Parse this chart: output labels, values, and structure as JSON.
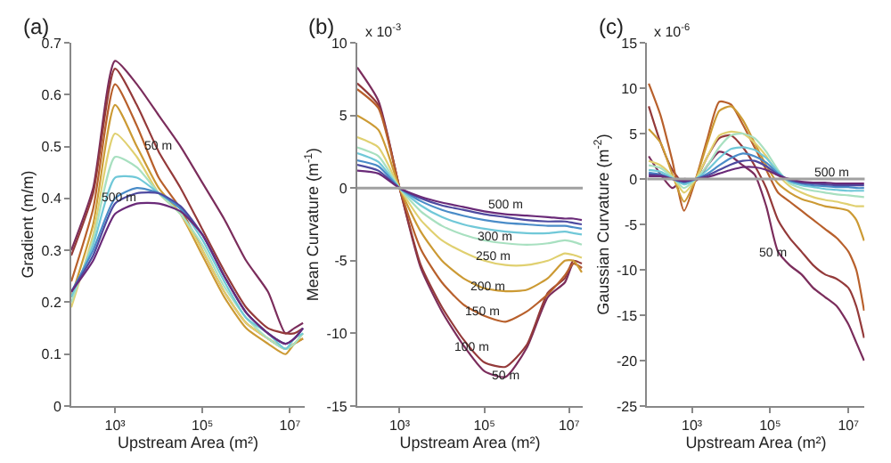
{
  "chart_data": [
    {
      "type": "line",
      "title": "(a)",
      "xlabel": "Upstream Area (m²)",
      "ylabel": "Gradient (m/m)",
      "log": "x",
      "x": [
        100,
        316,
        1000,
        3162,
        10000,
        31623,
        100000,
        316228,
        1000000,
        3162278,
        7943282,
        12589254,
        19952623
      ],
      "xlim": [
        100,
        22000000
      ],
      "xticks": [
        {
          "value": 1000,
          "label": "10³"
        },
        {
          "value": 100000,
          "label": "10⁵"
        },
        {
          "value": 10000000,
          "label": "10⁷"
        }
      ],
      "ylim": [
        0,
        0.7
      ],
      "yticks": [
        0,
        0.1,
        0.2,
        0.3,
        0.4,
        0.5,
        0.6,
        0.7
      ],
      "annotations": [
        {
          "text": "50 m",
          "x": 10000,
          "y": 0.5
        },
        {
          "text": "500 m",
          "x": 1259,
          "y": 0.4
        }
      ],
      "series": [
        {
          "color": "#7b2d5c",
          "values": [
            0.3,
            0.42,
            0.665,
            0.62,
            0.56,
            0.5,
            0.43,
            0.36,
            0.28,
            0.22,
            0.14,
            0.15,
            0.16
          ]
        },
        {
          "color": "#943a3a",
          "values": [
            0.29,
            0.41,
            0.65,
            0.58,
            0.49,
            0.42,
            0.34,
            0.26,
            0.19,
            0.15,
            0.14,
            0.14,
            0.15
          ]
        },
        {
          "color": "#b8602c",
          "values": [
            0.24,
            0.38,
            0.62,
            0.54,
            0.44,
            0.38,
            0.3,
            0.22,
            0.16,
            0.13,
            0.11,
            0.12,
            0.13
          ]
        },
        {
          "color": "#cc9a34",
          "values": [
            0.21,
            0.35,
            0.58,
            0.5,
            0.42,
            0.37,
            0.29,
            0.21,
            0.15,
            0.12,
            0.1,
            0.12,
            0.13
          ]
        },
        {
          "color": "#e0d070",
          "values": [
            0.19,
            0.33,
            0.525,
            0.48,
            0.41,
            0.37,
            0.3,
            0.22,
            0.16,
            0.13,
            0.11,
            0.12,
            0.14
          ]
        },
        {
          "color": "#a8e0c0",
          "values": [
            0.2,
            0.32,
            0.48,
            0.46,
            0.41,
            0.37,
            0.31,
            0.23,
            0.17,
            0.13,
            0.11,
            0.12,
            0.14
          ]
        },
        {
          "color": "#70c8d8",
          "values": [
            0.21,
            0.31,
            0.44,
            0.44,
            0.41,
            0.38,
            0.32,
            0.24,
            0.17,
            0.14,
            0.11,
            0.13,
            0.14
          ]
        },
        {
          "color": "#4a8cc8",
          "values": [
            0.22,
            0.3,
            0.4,
            0.42,
            0.41,
            0.38,
            0.33,
            0.25,
            0.18,
            0.14,
            0.12,
            0.13,
            0.15
          ]
        },
        {
          "color": "#4e4aa0",
          "values": [
            0.22,
            0.29,
            0.39,
            0.41,
            0.41,
            0.385,
            0.33,
            0.25,
            0.18,
            0.14,
            0.12,
            0.13,
            0.15
          ]
        },
        {
          "color": "#6a2a78",
          "values": [
            0.22,
            0.28,
            0.37,
            0.39,
            0.39,
            0.375,
            0.33,
            0.25,
            0.18,
            0.14,
            0.12,
            0.13,
            0.15
          ]
        }
      ]
    },
    {
      "type": "line",
      "title": "(b)",
      "xlabel": "Upstream Area (m²)",
      "ylabel": "Mean Curvature (m$^{-1}$)",
      "log": "x",
      "x": [
        100,
        316,
        1000,
        3162,
        10000,
        31623,
        100000,
        316228,
        1000000,
        3162278,
        7943282,
        12589254,
        19952623
      ],
      "xlim": [
        100,
        21000000
      ],
      "xticks": [
        {
          "value": 1000,
          "label": "10³"
        },
        {
          "value": 100000,
          "label": "10⁵"
        },
        {
          "value": 10000000,
          "label": "10⁷"
        }
      ],
      "ylim": [
        -15,
        10
      ],
      "yticks": [
        -15,
        -10,
        -5,
        0,
        5,
        10
      ],
      "ref_lines": [
        {
          "axis": "y",
          "value": 0,
          "color": "#a0a0a0"
        }
      ],
      "annotations": [
        "x 10$^{-3}$",
        {
          "text": "500 m",
          "x": 316228,
          "y": -1.2
        },
        {
          "text": "300 m",
          "x": 173780,
          "y": -3.4
        },
        {
          "text": "250 m",
          "x": 158489,
          "y": -4.8
        },
        {
          "text": "200 m",
          "x": 125893,
          "y": -6.8
        },
        {
          "text": "150 m",
          "x": 93325,
          "y": -8.6
        },
        {
          "text": "100 m",
          "x": 50119,
          "y": -11.0
        },
        {
          "text": "50 m",
          "x": 316228,
          "y": -13.0
        }
      ],
      "series": [
        {
          "color": "#7b2d5c",
          "values": [
            8.3,
            6,
            0,
            -5.5,
            -8.5,
            -10.8,
            -12.6,
            -13.0,
            -11,
            -7.5,
            -6.5,
            -5.2,
            -5.5
          ]
        },
        {
          "color": "#943a3a",
          "values": [
            7.2,
            5.7,
            0,
            -5.3,
            -8.2,
            -10.4,
            -12.0,
            -12.3,
            -10.8,
            -7.2,
            -6.2,
            -5,
            -5.2
          ]
        },
        {
          "color": "#b8602c",
          "values": [
            6.8,
            5.5,
            0,
            -4.2,
            -6.5,
            -8,
            -8.8,
            -9.2,
            -8.5,
            -7.3,
            -6,
            -5.2,
            -5.5
          ]
        },
        {
          "color": "#cc9a34",
          "values": [
            5,
            4,
            0,
            -3,
            -5,
            -6.2,
            -6.9,
            -7.1,
            -7,
            -6.2,
            -5,
            -5,
            -5.8
          ]
        },
        {
          "color": "#e0d070",
          "values": [
            3.5,
            2.8,
            0,
            -2.2,
            -3.6,
            -4.4,
            -5.0,
            -5.3,
            -5.3,
            -5,
            -4.5,
            -4.6,
            -4.8
          ]
        },
        {
          "color": "#a8e0c0",
          "values": [
            2.8,
            2.2,
            0,
            -1.6,
            -2.6,
            -3.2,
            -3.6,
            -3.8,
            -3.9,
            -3.8,
            -3.6,
            -3.7,
            -3.9
          ]
        },
        {
          "color": "#70c8d8",
          "values": [
            2.4,
            1.8,
            0,
            -1.2,
            -2,
            -2.5,
            -2.8,
            -3,
            -3.1,
            -3.1,
            -3,
            -3.1,
            -3.2
          ]
        },
        {
          "color": "#4a8cc8",
          "values": [
            1.9,
            1.5,
            0,
            -0.9,
            -1.5,
            -1.9,
            -2.2,
            -2.4,
            -2.5,
            -2.6,
            -2.6,
            -2.7,
            -2.8
          ]
        },
        {
          "color": "#4e4aa0",
          "values": [
            1.6,
            1.2,
            0,
            -0.7,
            -1.2,
            -1.5,
            -1.8,
            -2.0,
            -2.2,
            -2.3,
            -2.3,
            -2.4,
            -2.5
          ]
        },
        {
          "color": "#6a2a78",
          "values": [
            1.2,
            1.0,
            0,
            -0.6,
            -1.0,
            -1.3,
            -1.6,
            -1.8,
            -1.9,
            -2.0,
            -2.1,
            -2.1,
            -2.2
          ]
        }
      ]
    },
    {
      "type": "line",
      "title": "(c)",
      "xlabel": "Upstream Area (m²)",
      "ylabel": "Gaussian Curvature (m$^{-2}$)",
      "log": "x",
      "x": [
        79,
        158,
        316,
        631,
        1259,
        2512,
        5012,
        10000,
        19953,
        39811,
        79433,
        158489,
        316228,
        630957,
        1258925,
        2511886,
        5011872,
        10000000,
        15848932,
        25118864
      ],
      "xlim": [
        72,
        26000000
      ],
      "xticks": [
        {
          "value": 1000,
          "label": "10³"
        },
        {
          "value": 100000,
          "label": "10⁵"
        },
        {
          "value": 10000000,
          "label": "10⁷"
        }
      ],
      "ylim": [
        -25,
        15
      ],
      "yticks": [
        -25,
        -20,
        -15,
        -10,
        -5,
        0,
        5,
        10,
        15
      ],
      "ref_lines": [
        {
          "axis": "y",
          "value": 0,
          "color": "#a0a0a0"
        }
      ],
      "annotations": [
        "x 10$^{-6}$",
        {
          "text": "500 m",
          "x": 3715352,
          "y": 0.6
        },
        {
          "text": "50 m",
          "x": 117490,
          "y": -8.2
        }
      ],
      "series": [
        {
          "color": "#7b2d5c",
          "values": [
            2.5,
            0.5,
            -1,
            0,
            -0.2,
            1.5,
            3,
            2.5,
            1.5,
            0.5,
            -3,
            -8,
            -9.5,
            -10.5,
            -12,
            -13,
            -14,
            -16,
            -18,
            -20
          ]
        },
        {
          "color": "#943a3a",
          "values": [
            8,
            4,
            1,
            -0.5,
            0,
            2.5,
            4.5,
            4.8,
            3.5,
            1.5,
            -1,
            -4.5,
            -6.5,
            -8,
            -9.5,
            -10.5,
            -11,
            -12,
            -14,
            -17.5
          ]
        },
        {
          "color": "#b8602c",
          "values": [
            10.5,
            7,
            2,
            -3.5,
            0,
            4.5,
            8.5,
            8.2,
            6,
            3.5,
            1,
            -1.5,
            -2.5,
            -3.5,
            -4.5,
            -5.5,
            -6.5,
            -8,
            -10,
            -14.5
          ]
        },
        {
          "color": "#cc9a34",
          "values": [
            5.5,
            4,
            0.5,
            -2.5,
            0,
            4,
            7.5,
            8,
            6.5,
            4,
            1.5,
            -0.5,
            -1.5,
            -2.2,
            -2.6,
            -3,
            -3.2,
            -3.5,
            -4.5,
            -6.8
          ]
        },
        {
          "color": "#e0d070",
          "values": [
            2,
            1.5,
            0.3,
            -1.5,
            0,
            2.5,
            4.8,
            5.2,
            5,
            4,
            2.5,
            0.5,
            -0.8,
            -1.5,
            -2,
            -2.3,
            -2.5,
            -2.8,
            -3,
            -3
          ]
        },
        {
          "color": "#a8e0c0",
          "values": [
            1.5,
            1.2,
            0.2,
            -1,
            0,
            1.5,
            3.5,
            4.8,
            5,
            4.5,
            3,
            1,
            -0.5,
            -1,
            -1.3,
            -1.5,
            -1.7,
            -1.8,
            -1.9,
            -2
          ]
        },
        {
          "color": "#70c8d8",
          "values": [
            1,
            0.8,
            0.1,
            -0.6,
            0,
            1,
            2.3,
            3.3,
            3.5,
            3.2,
            2.3,
            0.8,
            -0.3,
            -0.7,
            -0.9,
            -1.1,
            -1.2,
            -1.3,
            -1.3,
            -1.3
          ]
        },
        {
          "color": "#4a8cc8",
          "values": [
            0.7,
            0.5,
            0,
            -0.4,
            0,
            0.6,
            1.5,
            2.3,
            2.8,
            2.5,
            1.8,
            0.6,
            -0.2,
            -0.5,
            -0.7,
            -0.8,
            -0.9,
            -0.9,
            -1,
            -1
          ]
        },
        {
          "color": "#4e4aa0",
          "values": [
            0.5,
            0.4,
            0,
            -0.3,
            0,
            0.4,
            1,
            1.6,
            2,
            2,
            1.4,
            0.5,
            -0.1,
            -0.4,
            -0.5,
            -0.6,
            -0.7,
            -0.7,
            -0.7,
            -0.7
          ]
        },
        {
          "color": "#6a2a78",
          "values": [
            0.3,
            0.3,
            0,
            -0.2,
            0,
            0.2,
            0.6,
            1,
            1.3,
            1.3,
            1,
            0.4,
            0,
            -0.3,
            -0.4,
            -0.4,
            -0.5,
            -0.5,
            -0.5,
            -0.5
          ]
        }
      ]
    }
  ]
}
